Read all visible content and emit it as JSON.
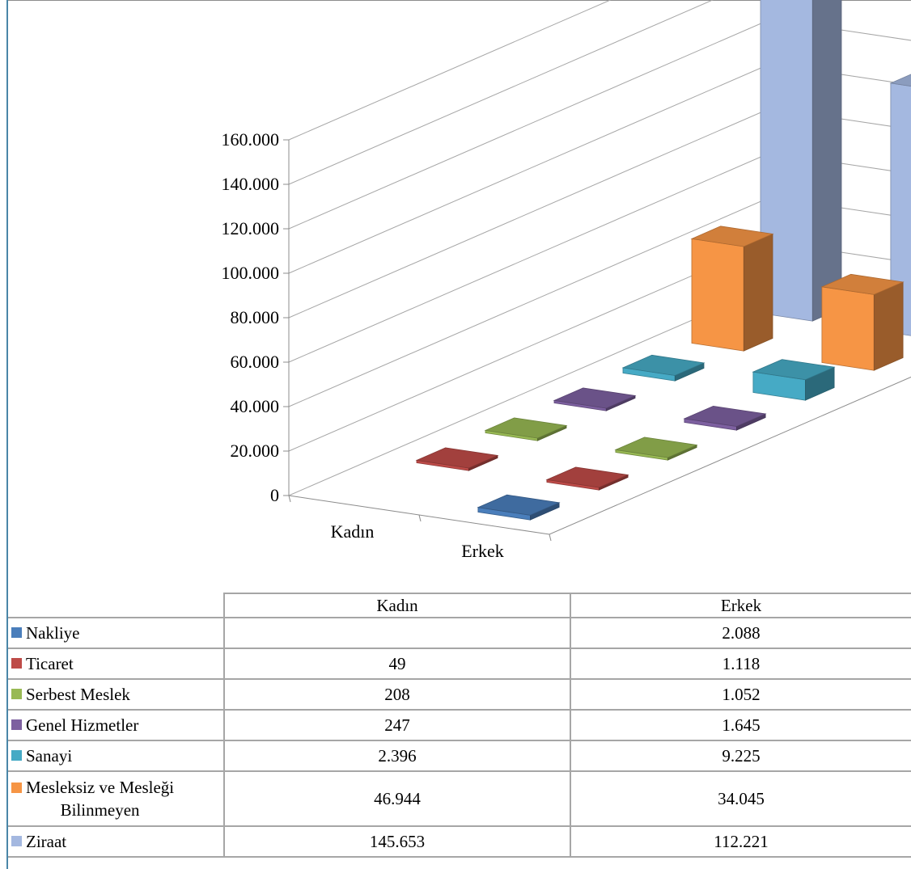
{
  "chart_data": {
    "type": "bar",
    "subtype": "3d-column",
    "categories": [
      "Kadın",
      "Erkek"
    ],
    "series": [
      {
        "name": "Nakliye",
        "color": "#4a7ebb",
        "values": [
          null,
          2088
        ]
      },
      {
        "name": "Ticaret",
        "color": "#be4b48",
        "values": [
          49,
          1118
        ]
      },
      {
        "name": "Serbest Meslek",
        "color": "#98b954",
        "values": [
          208,
          1052
        ]
      },
      {
        "name": "Genel Hizmetler",
        "color": "#7d60a0",
        "values": [
          247,
          1645
        ]
      },
      {
        "name": "Sanayi",
        "color": "#46aac5",
        "values": [
          2396,
          9225
        ]
      },
      {
        "name": "Mesleksiz ve Mesleği Bilinmeyen",
        "color": "#f69545",
        "values": [
          46944,
          34045
        ]
      },
      {
        "name": "Ziraat",
        "color": "#a4b8e0",
        "values": [
          145653,
          112221
        ]
      }
    ],
    "ylim": [
      0,
      160000
    ],
    "yticks": [
      "0",
      "20.000",
      "40.000",
      "60.000",
      "80.000",
      "100.000",
      "120.000",
      "140.000",
      "160.000"
    ],
    "legend": "data-table-below",
    "grid": true
  },
  "table": {
    "headers": [
      "Kadın",
      "Erkek"
    ],
    "rows": [
      {
        "label": "Nakliye",
        "kadin": "",
        "erkek": "2.088"
      },
      {
        "label": "Ticaret",
        "kadin": "49",
        "erkek": "1.118"
      },
      {
        "label": "Serbest Meslek",
        "kadin": "208",
        "erkek": "1.052"
      },
      {
        "label": "Genel Hizmetler",
        "kadin": "247",
        "erkek": "1.645"
      },
      {
        "label": "Sanayi",
        "kadin": "2.396",
        "erkek": "9.225"
      },
      {
        "label_line1": "Mesleksiz ve Mesleği",
        "label_line2": "Bilinmeyen",
        "kadin": "46.944",
        "erkek": "34.045"
      },
      {
        "label": "Ziraat",
        "kadin": "145.653",
        "erkek": "112.221"
      }
    ]
  }
}
